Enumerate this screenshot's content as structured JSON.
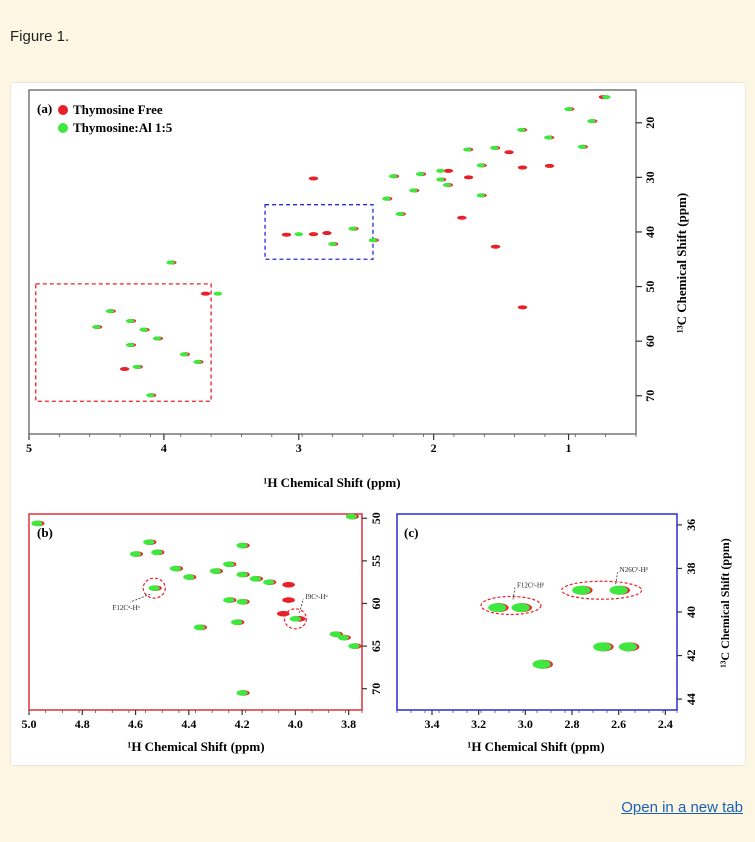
{
  "caption": "Figure 1.",
  "open_link": "Open in a new tab",
  "colors": {
    "free": "#e8202a",
    "al": "#3ee83e",
    "panel_b_frame": "#e0303a",
    "panel_c_frame": "#2a2ad8"
  },
  "chart_data": [
    {
      "type": "scatter",
      "panel": "(a)",
      "title": "",
      "legend": [
        "Thymosine Free",
        "Thymosine:Al 1:5"
      ],
      "legend_placement": "top-left",
      "xlabel": "¹H Chemical Shift (ppm)",
      "ylabel": "¹³C Chemical Shift (ppm)",
      "xlim": [
        5.0,
        0.5
      ],
      "ylim": [
        14,
        77
      ],
      "xticks": [
        "5",
        "4",
        "3",
        "2",
        "1"
      ],
      "yticks": [
        "20",
        "30",
        "40",
        "50",
        "60",
        "70"
      ],
      "series": [
        {
          "name": "Thymosine Free",
          "points": [
            [
              0.75,
              15.3
            ],
            [
              1.0,
              17.5
            ],
            [
              0.83,
              19.7
            ],
            [
              1.35,
              21.3
            ],
            [
              1.15,
              22.7
            ],
            [
              0.9,
              24.4
            ],
            [
              1.55,
              24.6
            ],
            [
              1.75,
              24.9
            ],
            [
              1.45,
              25.4
            ],
            [
              1.65,
              27.8
            ],
            [
              1.35,
              28.2
            ],
            [
              1.15,
              27.9
            ],
            [
              1.9,
              28.8
            ],
            [
              2.1,
              29.4
            ],
            [
              2.3,
              29.8
            ],
            [
              1.75,
              30.0
            ],
            [
              1.95,
              30.4
            ],
            [
              2.9,
              30.2
            ],
            [
              1.9,
              31.4
            ],
            [
              2.15,
              32.4
            ],
            [
              1.65,
              33.3
            ],
            [
              2.35,
              33.9
            ],
            [
              2.25,
              36.7
            ],
            [
              1.8,
              37.4
            ],
            [
              2.6,
              39.4
            ],
            [
              2.8,
              40.2
            ],
            [
              2.75,
              42.2
            ],
            [
              2.45,
              41.5
            ],
            [
              3.1,
              40.5
            ],
            [
              2.9,
              40.4
            ],
            [
              1.55,
              42.7
            ],
            [
              1.35,
              53.8
            ],
            [
              3.7,
              51.3
            ],
            [
              3.95,
              45.6
            ],
            [
              4.4,
              54.5
            ],
            [
              4.25,
              56.3
            ],
            [
              4.15,
              57.9
            ],
            [
              4.5,
              57.4
            ],
            [
              4.05,
              59.5
            ],
            [
              4.25,
              60.7
            ],
            [
              3.85,
              62.4
            ],
            [
              3.75,
              63.8
            ],
            [
              4.2,
              64.7
            ],
            [
              4.1,
              69.9
            ],
            [
              4.3,
              65.1
            ]
          ]
        },
        {
          "name": "Thymosine:Al 1:5",
          "points": [
            [
              0.72,
              15.3
            ],
            [
              1.0,
              17.5
            ],
            [
              0.83,
              19.7
            ],
            [
              1.35,
              21.3
            ],
            [
              1.15,
              22.7
            ],
            [
              0.9,
              24.4
            ],
            [
              1.55,
              24.6
            ],
            [
              1.75,
              24.9
            ],
            [
              1.65,
              27.8
            ],
            [
              1.95,
              28.8
            ],
            [
              2.1,
              29.4
            ],
            [
              2.3,
              29.8
            ],
            [
              1.95,
              30.4
            ],
            [
              1.9,
              31.4
            ],
            [
              2.15,
              32.4
            ],
            [
              1.65,
              33.3
            ],
            [
              2.35,
              33.9
            ],
            [
              2.25,
              36.7
            ],
            [
              2.6,
              39.4
            ],
            [
              2.75,
              42.2
            ],
            [
              2.45,
              41.5
            ],
            [
              3.0,
              40.4
            ],
            [
              3.95,
              45.6
            ],
            [
              4.4,
              54.5
            ],
            [
              4.25,
              56.3
            ],
            [
              4.15,
              57.9
            ],
            [
              4.5,
              57.4
            ],
            [
              4.05,
              59.5
            ],
            [
              4.25,
              60.7
            ],
            [
              3.85,
              62.4
            ],
            [
              3.75,
              63.8
            ],
            [
              4.2,
              64.7
            ],
            [
              4.1,
              69.9
            ],
            [
              3.6,
              51.3
            ]
          ]
        }
      ],
      "boxes": [
        {
          "color": "red",
          "x": [
            4.95,
            3.65
          ],
          "y": [
            49.5,
            71.0
          ]
        },
        {
          "color": "blue",
          "x": [
            3.25,
            2.45
          ],
          "y": [
            35.0,
            45.0
          ]
        }
      ]
    },
    {
      "type": "scatter",
      "panel": "(b)",
      "xlabel": "¹H Chemical Shift (ppm)",
      "ylabel": "",
      "xlim": [
        5.0,
        3.75
      ],
      "ylim": [
        49.5,
        72.5
      ],
      "xticks": [
        "5.0",
        "4.8",
        "4.6",
        "4.4",
        "4.2",
        "4.0",
        "3.8"
      ],
      "yticks": [
        "50",
        "55",
        "60",
        "65",
        "70"
      ],
      "annotations": [
        {
          "text": "F12Cᵅ-Hᵅ",
          "x": 4.53,
          "y": 58.2
        },
        {
          "text": "I9Cᵅ-Hᵅ",
          "x": 4.0,
          "y": 61.8
        }
      ],
      "series": [
        {
          "name": "Thymosine Free",
          "points": [
            [
              4.97,
              50.6
            ],
            [
              4.55,
              52.8
            ],
            [
              4.6,
              54.2
            ],
            [
              4.52,
              54.0
            ],
            [
              4.2,
              53.2
            ],
            [
              4.45,
              55.9
            ],
            [
              4.4,
              56.9
            ],
            [
              4.3,
              56.2
            ],
            [
              4.25,
              55.4
            ],
            [
              4.2,
              56.6
            ],
            [
              4.15,
              57.1
            ],
            [
              4.1,
              57.5
            ],
            [
              4.03,
              57.8
            ],
            [
              4.53,
              58.2
            ],
            [
              4.25,
              59.6
            ],
            [
              4.2,
              59.8
            ],
            [
              4.03,
              59.6
            ],
            [
              4.05,
              61.2
            ],
            [
              3.99,
              61.8
            ],
            [
              4.22,
              62.2
            ],
            [
              4.36,
              62.8
            ],
            [
              3.85,
              63.6
            ],
            [
              3.82,
              64.0
            ],
            [
              3.78,
              65.0
            ],
            [
              4.2,
              70.5
            ],
            [
              3.79,
              49.8
            ]
          ]
        },
        {
          "name": "Thymosine:Al 1:5",
          "points": [
            [
              4.97,
              50.6
            ],
            [
              4.55,
              52.8
            ],
            [
              4.6,
              54.2
            ],
            [
              4.52,
              54.0
            ],
            [
              4.2,
              53.2
            ],
            [
              4.45,
              55.9
            ],
            [
              4.4,
              56.9
            ],
            [
              4.3,
              56.2
            ],
            [
              4.25,
              55.4
            ],
            [
              4.2,
              56.6
            ],
            [
              4.15,
              57.1
            ],
            [
              4.1,
              57.5
            ],
            [
              4.53,
              58.2
            ],
            [
              4.25,
              59.6
            ],
            [
              4.2,
              59.8
            ],
            [
              4.0,
              61.8
            ],
            [
              4.22,
              62.2
            ],
            [
              4.36,
              62.8
            ],
            [
              3.85,
              63.6
            ],
            [
              3.82,
              64.0
            ],
            [
              3.78,
              65.0
            ],
            [
              4.2,
              70.5
            ],
            [
              3.79,
              49.8
            ]
          ]
        }
      ]
    },
    {
      "type": "scatter",
      "panel": "(c)",
      "xlabel": "¹H Chemical Shift (ppm)",
      "ylabel": "¹³C Chemical Shift (ppm)",
      "xlim": [
        3.55,
        2.35
      ],
      "ylim": [
        35.5,
        44.5
      ],
      "xticks": [
        "3.4",
        "3.2",
        "3.0",
        "2.8",
        "2.6",
        "2.4"
      ],
      "yticks": [
        "36",
        "38",
        "40",
        "42",
        "44"
      ],
      "annotations": [
        {
          "text": "F12Cᵝ-Hᵝ",
          "x": 3.07,
          "y": 39.7
        },
        {
          "text": "N26Cᵝ-Hᵝ",
          "x": 2.63,
          "y": 39.0
        }
      ],
      "series": [
        {
          "name": "Thymosine Free",
          "points": [
            [
              3.12,
              39.8
            ],
            [
              3.02,
              39.8
            ],
            [
              2.76,
              39.0
            ],
            [
              2.6,
              39.0
            ],
            [
              2.93,
              42.4
            ],
            [
              2.67,
              41.6
            ],
            [
              2.56,
              41.6
            ]
          ]
        },
        {
          "name": "Thymosine:Al 1:5",
          "points": [
            [
              2.93,
              42.4
            ],
            [
              2.67,
              41.6
            ],
            [
              2.56,
              41.6
            ],
            [
              3.02,
              39.8
            ],
            [
              2.6,
              39.0
            ],
            [
              2.76,
              39.0
            ],
            [
              3.12,
              39.8
            ]
          ]
        }
      ]
    }
  ]
}
